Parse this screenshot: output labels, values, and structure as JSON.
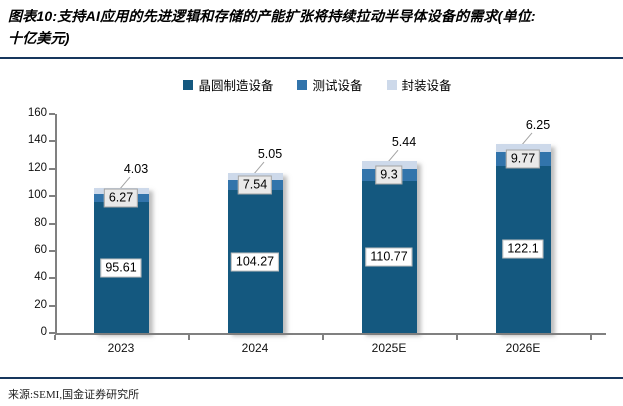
{
  "header": {
    "line1": "图表10:支持AI应用的先进逻辑和存储的产能扩张将持续拉动半导体设备的需求(单位:",
    "line2": "十亿美元)"
  },
  "chart_data": {
    "type": "bar",
    "stacked": true,
    "categories": [
      "2023",
      "2024",
      "2025E",
      "2026E"
    ],
    "series": [
      {
        "key": "wafer-fab-equipment",
        "name": "晶圆制造设备",
        "color": "#14587f",
        "values": [
          95.61,
          104.27,
          110.77,
          122.1
        ],
        "label_style": "white-box"
      },
      {
        "key": "test-equipment",
        "name": "测试设备",
        "color": "#3274ab",
        "values": [
          6.27,
          7.54,
          9.3,
          9.77
        ],
        "label_style": "gray-box"
      },
      {
        "key": "packaging-equipment",
        "name": "封装设备",
        "color": "#cdd9ea",
        "values": [
          4.03,
          5.05,
          5.44,
          6.25
        ],
        "label_style": "callout-text"
      }
    ],
    "totals": [
      105.91,
      116.86,
      125.51,
      138.12
    ],
    "ylim": [
      0,
      160
    ],
    "yticks": [
      0,
      20,
      40,
      60,
      80,
      100,
      120,
      140,
      160
    ],
    "legend_position": "top",
    "grid": false,
    "axis_color": "#808080",
    "callout_color": "#a3a3a3"
  },
  "footer": {
    "source": "来源:SEMI,国金证券研究所"
  }
}
